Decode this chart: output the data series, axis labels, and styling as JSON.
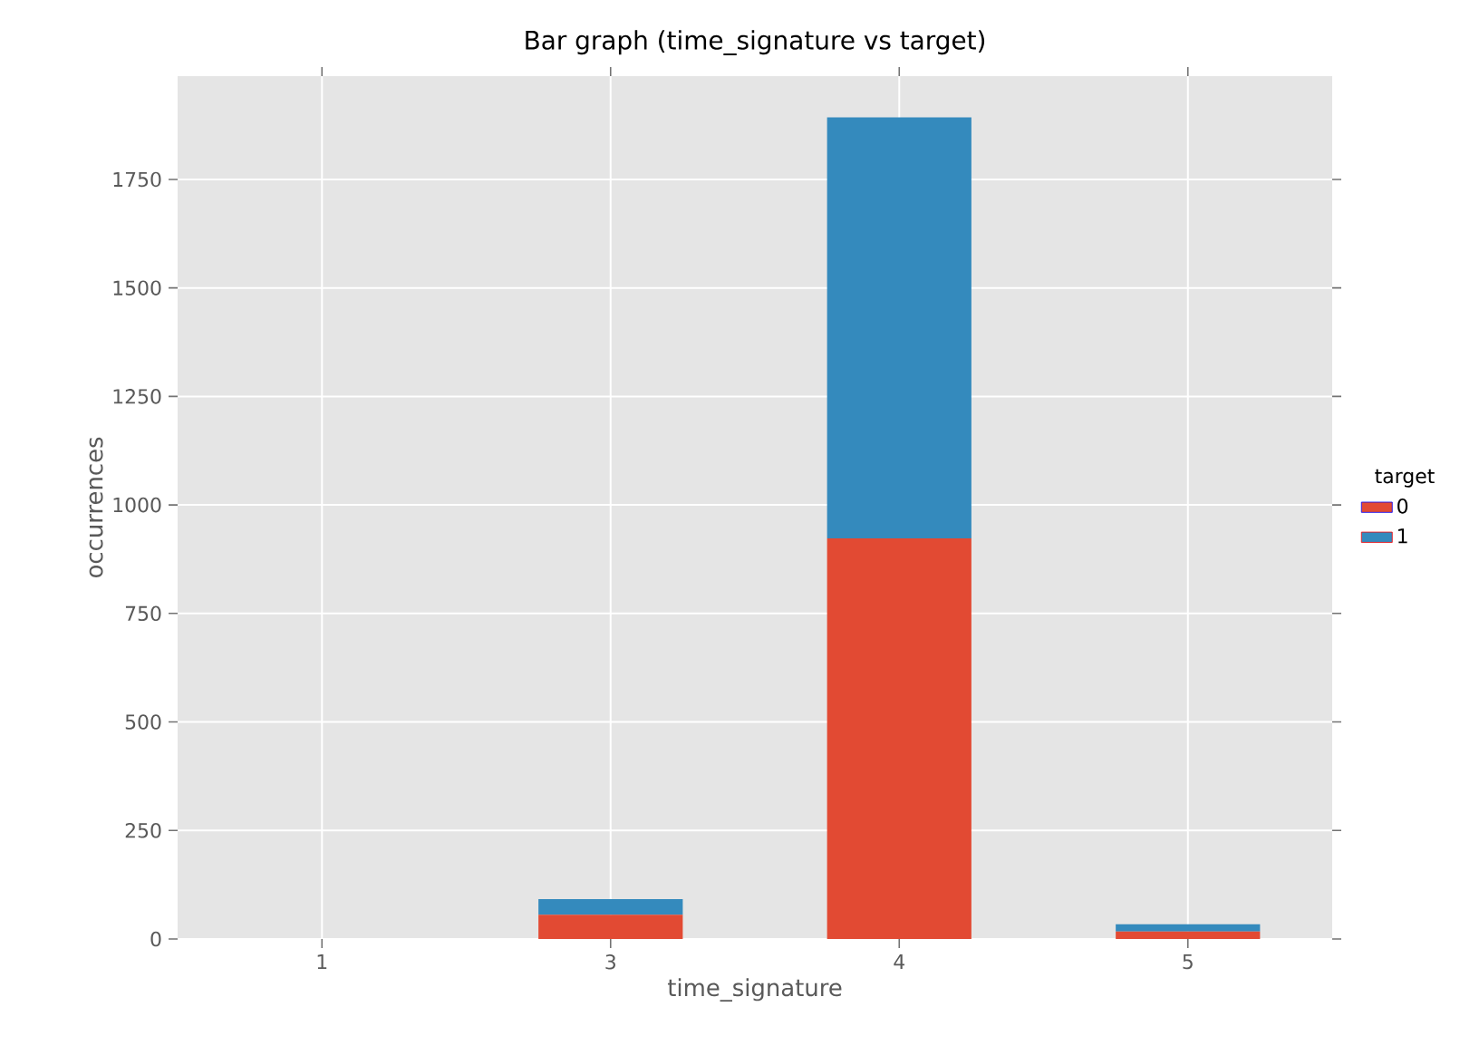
{
  "chart_data": {
    "type": "bar",
    "title": "Bar graph (time_signature vs target)",
    "xlabel": "time_signature",
    "ylabel": "occurrences",
    "legend_title": "target",
    "categories": [
      "1",
      "3",
      "4",
      "5"
    ],
    "series": [
      {
        "name": "0",
        "color": "#e24a33",
        "values": [
          0,
          56,
          923,
          17
        ]
      },
      {
        "name": "1",
        "color": "#348abd",
        "values": [
          0,
          36,
          970,
          17
        ]
      }
    ],
    "stacked": true,
    "ylim": [
      0,
      1988
    ],
    "yticks": [
      0,
      250,
      500,
      750,
      1000,
      1250,
      1500,
      1750
    ],
    "grid": true,
    "legend": "right"
  }
}
